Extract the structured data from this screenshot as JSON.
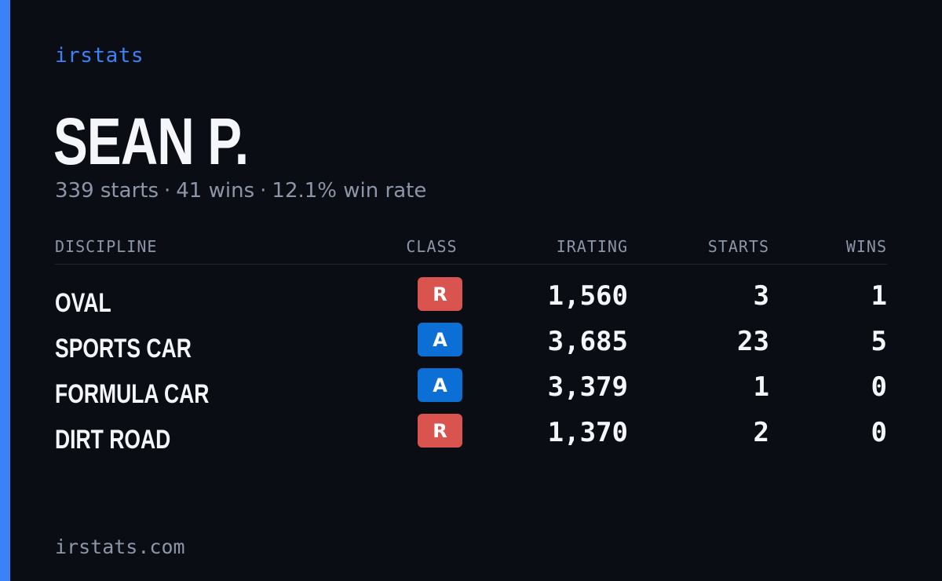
{
  "brand": "irstats",
  "player": {
    "name": "SEAN P.",
    "starts_text": "339 starts",
    "wins_text": "41 wins",
    "win_rate_text": "12.1% win rate",
    "separator": "·"
  },
  "table": {
    "headers": {
      "discipline": "DISCIPLINE",
      "class": "CLASS",
      "irating": "IRATING",
      "starts": "STARTS",
      "wins": "WINS"
    },
    "rows": [
      {
        "discipline": "OVAL",
        "class": "R",
        "class_color": "#d9534f",
        "irating": "1,560",
        "starts": "3",
        "wins": "1"
      },
      {
        "discipline": "SPORTS CAR",
        "class": "A",
        "class_color": "#0b6fd6",
        "irating": "3,685",
        "starts": "23",
        "wins": "5"
      },
      {
        "discipline": "FORMULA CAR",
        "class": "A",
        "class_color": "#0b6fd6",
        "irating": "3,379",
        "starts": "1",
        "wins": "0"
      },
      {
        "discipline": "DIRT ROAD",
        "class": "R",
        "class_color": "#d9534f",
        "irating": "1,370",
        "starts": "2",
        "wins": "0"
      }
    ]
  },
  "footer": {
    "domain": "irstats.com"
  },
  "colors": {
    "background": "#0a0d14",
    "accent": "#3b82f6",
    "muted": "#8c96a8"
  }
}
